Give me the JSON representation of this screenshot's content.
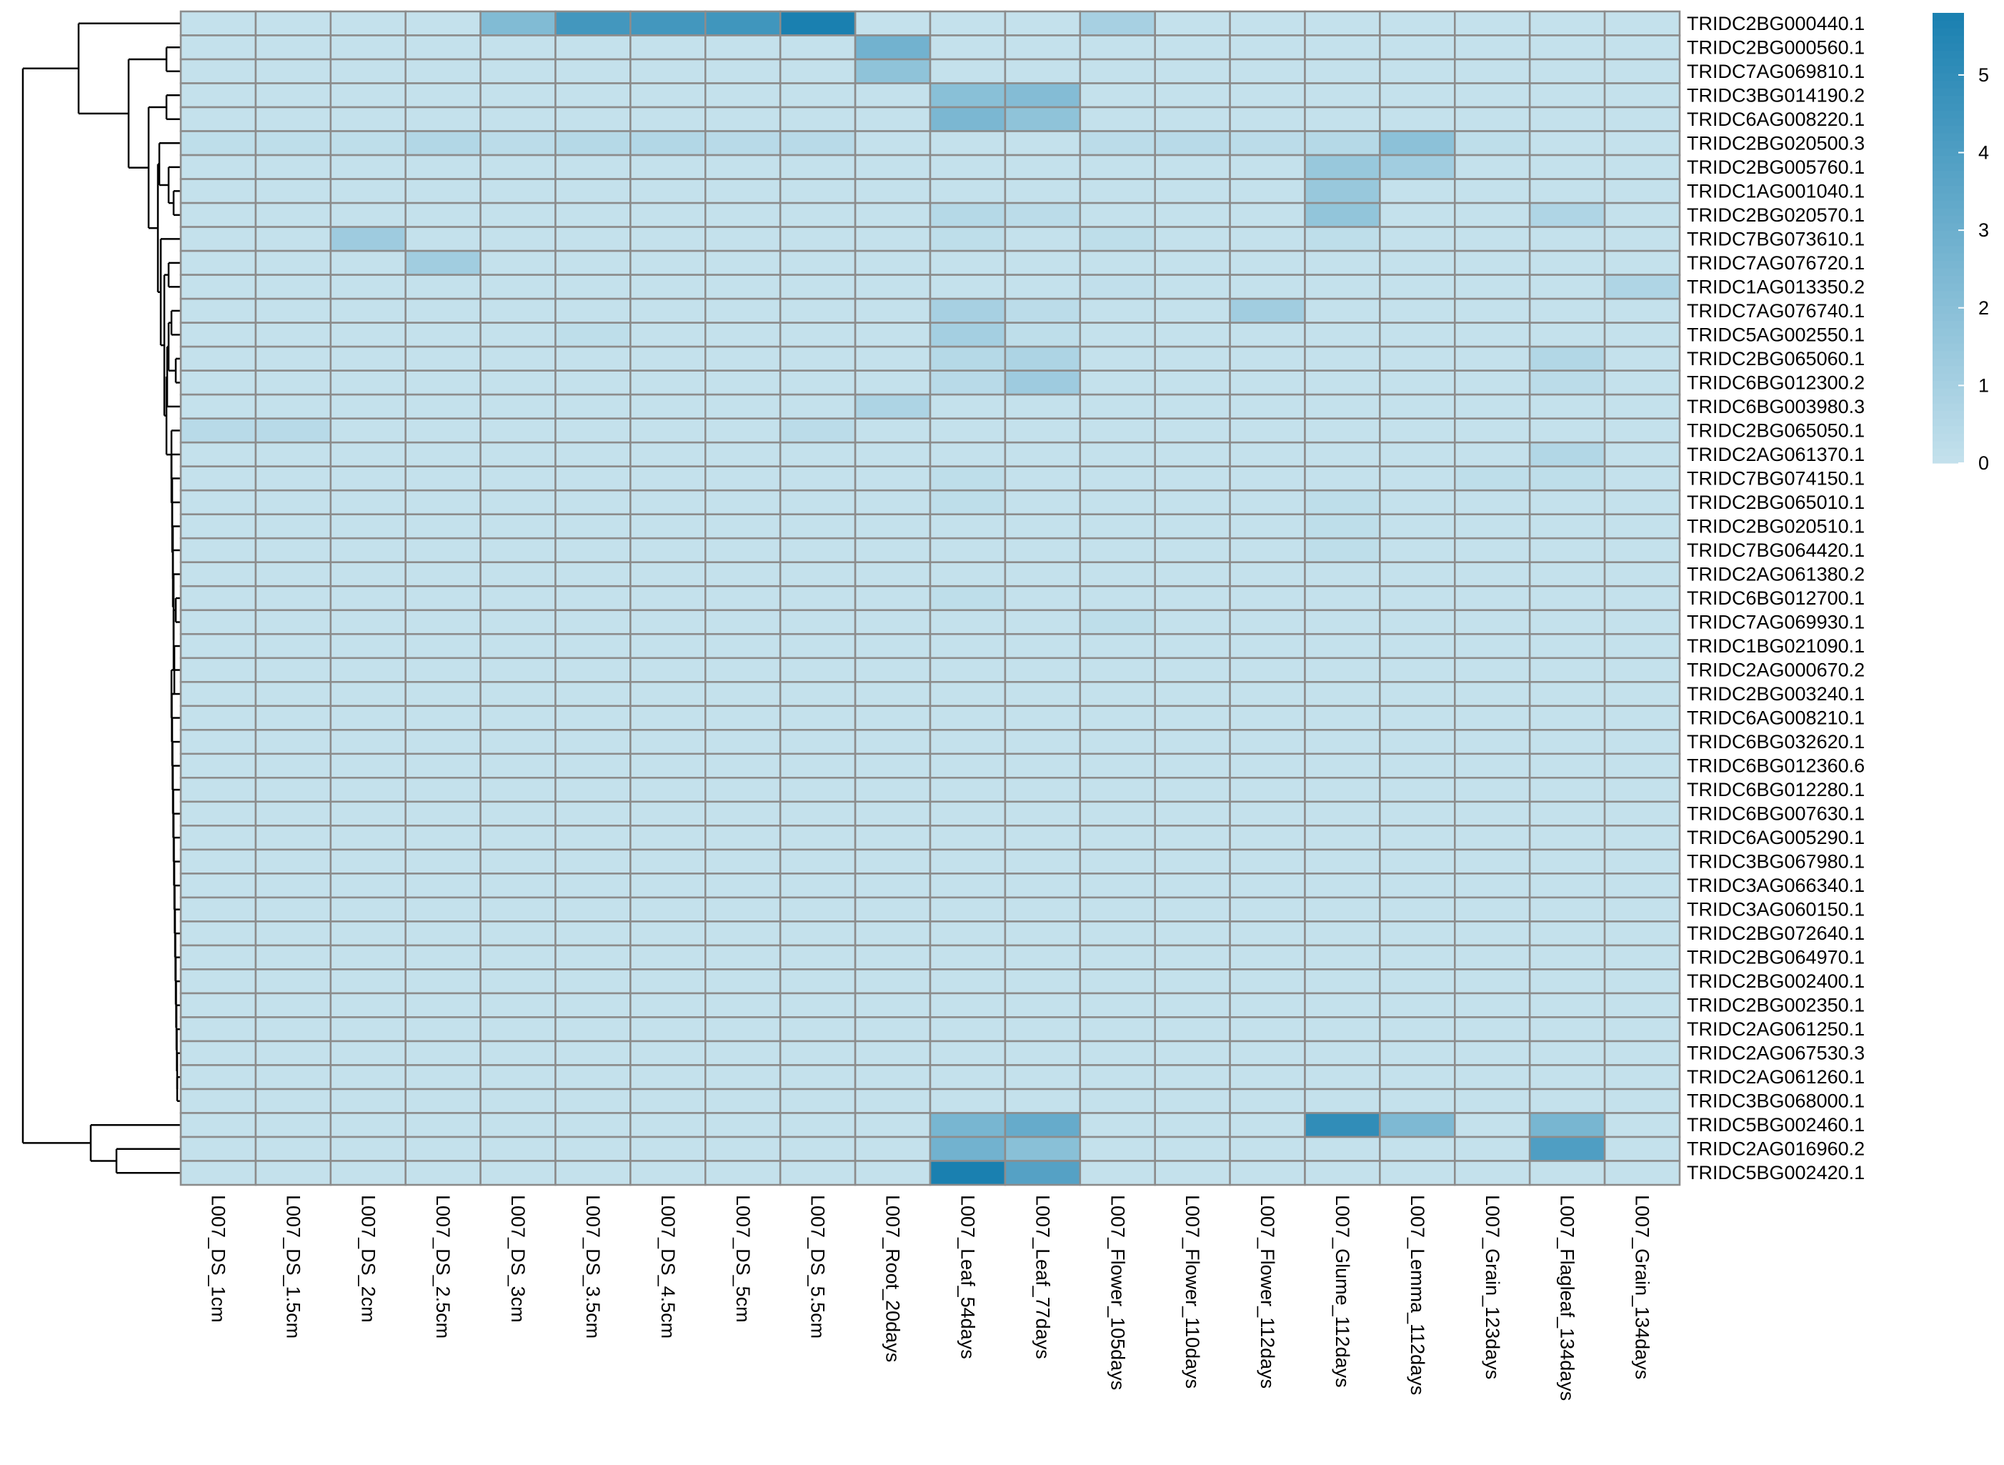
{
  "chart_data": {
    "type": "heatmap",
    "title": "",
    "xlabel": "",
    "ylabel": "",
    "columns": [
      "L007_DS_1cm",
      "L007_DS_1.5cm",
      "L007_DS_2cm",
      "L007_DS_2.5cm",
      "L007_DS_3cm",
      "L007_DS_3.5cm",
      "L007_DS_4.5cm",
      "L007_DS_5cm",
      "L007_DS_5.5cm",
      "L007_Root_20days",
      "L007_Leaf_54days",
      "L007_Leaf_77days",
      "L007_Flower_105days",
      "L007_Flower_110days",
      "L007_Flower_112days",
      "L007_Glume_112days",
      "L007_Lemma_112days",
      "L007_Grain_123days",
      "L007_Flagleaf_134days",
      "L007_Grain_134days"
    ],
    "rows": [
      "TRIDC2BG000440.1",
      "TRIDC2BG000560.1",
      "TRIDC7AG069810.1",
      "TRIDC3BG014190.2",
      "TRIDC6AG008220.1",
      "TRIDC2BG020500.3",
      "TRIDC2BG005760.1",
      "TRIDC1AG001040.1",
      "TRIDC2BG020570.1",
      "TRIDC7BG073610.1",
      "TRIDC7AG076720.1",
      "TRIDC1AG013350.2",
      "TRIDC7AG076740.1",
      "TRIDC5AG002550.1",
      "TRIDC2BG065060.1",
      "TRIDC6BG012300.2",
      "TRIDC6BG003980.3",
      "TRIDC2BG065050.1",
      "TRIDC2AG061370.1",
      "TRIDC7BG074150.1",
      "TRIDC2BG065010.1",
      "TRIDC2BG020510.1",
      "TRIDC7BG064420.1",
      "TRIDC2AG061380.2",
      "TRIDC6BG012700.1",
      "TRIDC7AG069930.1",
      "TRIDC1BG021090.1",
      "TRIDC2AG000670.2",
      "TRIDC2BG003240.1",
      "TRIDC6AG008210.1",
      "TRIDC6BG032620.1",
      "TRIDC6BG012360.6",
      "TRIDC6BG012280.1",
      "TRIDC6BG007630.1",
      "TRIDC6AG005290.1",
      "TRIDC3BG067980.1",
      "TRIDC3AG066340.1",
      "TRIDC3AG060150.1",
      "TRIDC2BG072640.1",
      "TRIDC2BG064970.1",
      "TRIDC2BG002400.1",
      "TRIDC2BG002350.1",
      "TRIDC2AG061250.1",
      "TRIDC2AG067530.3",
      "TRIDC2AG061260.1",
      "TRIDC3BG068000.1",
      "TRIDC5BG002460.1",
      "TRIDC2AG016960.2",
      "TRIDC5BG002420.1"
    ],
    "values": [
      [
        0,
        0,
        0,
        0,
        2.3,
        4.4,
        4.4,
        4.5,
        5.8,
        0,
        0,
        0,
        1,
        0,
        0,
        0,
        0,
        0,
        0,
        0
      ],
      [
        0,
        0,
        0,
        0,
        0,
        0,
        0,
        0,
        0,
        2.8,
        0,
        0,
        0,
        0,
        0,
        0,
        0,
        0,
        0,
        0
      ],
      [
        0,
        0,
        0,
        0,
        0,
        0,
        0,
        0,
        0,
        1.8,
        0,
        0,
        0,
        0,
        0,
        0,
        0,
        0,
        0,
        0
      ],
      [
        0,
        0,
        0,
        0,
        0,
        0,
        0,
        0,
        0,
        0,
        2,
        2.2,
        0,
        0,
        0,
        0,
        0,
        0,
        0,
        0
      ],
      [
        0,
        0,
        0,
        0,
        0,
        0,
        0,
        0,
        0,
        0,
        2.5,
        1.8,
        0,
        0,
        0,
        0,
        0,
        0,
        0,
        0
      ],
      [
        0.2,
        0.2,
        0.2,
        0.6,
        0.3,
        0.5,
        0.6,
        0.4,
        0.4,
        0,
        0,
        0,
        0.3,
        0.4,
        0.3,
        0.5,
        1.9,
        0.2,
        0,
        0
      ],
      [
        0,
        0,
        0,
        0,
        0,
        0,
        0,
        0,
        0,
        0,
        0,
        0,
        0,
        0,
        0,
        1.5,
        1.2,
        0,
        0,
        0
      ],
      [
        0,
        0,
        0,
        0,
        0,
        0,
        0,
        0,
        0,
        0,
        0,
        0,
        0,
        0,
        0,
        1.5,
        0,
        0,
        0,
        0
      ],
      [
        0,
        0,
        0,
        0,
        0,
        0,
        0,
        0,
        0,
        0,
        0.5,
        0.3,
        0,
        0,
        0,
        1.7,
        0,
        0,
        0.7,
        0
      ],
      [
        0,
        0,
        1.3,
        0,
        0,
        0,
        0,
        0,
        0,
        0,
        0.2,
        0,
        0.2,
        0,
        0,
        0.2,
        0,
        0,
        0,
        0
      ],
      [
        0,
        0,
        0,
        1.2,
        0,
        0,
        0,
        0,
        0,
        0,
        0,
        0,
        0,
        0,
        0,
        0,
        0,
        0,
        0,
        0
      ],
      [
        0,
        0,
        0,
        0,
        0,
        0,
        0,
        0,
        0,
        0,
        0,
        0,
        0.1,
        0,
        0,
        0,
        0,
        0,
        0,
        0.7
      ],
      [
        0,
        0,
        0,
        0,
        0,
        0,
        0,
        0,
        0,
        0,
        1,
        0.3,
        0,
        0,
        1.2,
        0,
        0,
        0,
        0,
        0
      ],
      [
        0,
        0,
        0,
        0,
        0,
        0.2,
        0,
        0,
        0,
        0,
        1.1,
        0.2,
        0,
        0,
        0,
        0,
        0,
        0,
        0,
        0
      ],
      [
        0,
        0,
        0,
        0,
        0,
        0,
        0,
        0,
        0,
        0,
        0.5,
        0.8,
        0,
        0,
        0,
        0,
        0,
        0,
        0.6,
        0
      ],
      [
        0,
        0,
        0,
        0,
        0,
        0,
        0,
        0,
        0,
        0,
        0.4,
        1.3,
        0,
        0,
        0,
        0,
        0,
        0,
        0.3,
        0
      ],
      [
        0,
        0,
        0,
        0,
        0,
        0,
        0,
        0,
        0,
        0.8,
        0,
        0,
        0,
        0,
        0,
        0,
        0,
        0,
        0,
        0
      ],
      [
        0.4,
        0.4,
        0,
        0,
        0,
        0,
        0,
        0,
        0.3,
        0,
        0,
        0,
        0,
        0,
        0,
        0,
        0,
        0,
        0,
        0
      ],
      [
        0,
        0,
        0,
        0,
        0,
        0,
        0,
        0,
        0,
        0,
        0,
        0,
        0,
        0,
        0,
        0,
        0,
        0,
        0.6,
        0
      ],
      [
        0,
        0,
        0,
        0,
        0,
        0,
        0,
        0,
        0,
        0,
        0.2,
        0,
        0,
        0,
        0,
        0,
        0,
        0.2,
        0.2,
        0
      ],
      [
        0,
        0,
        0,
        0,
        0,
        0,
        0,
        0,
        0,
        0,
        0.2,
        0,
        0,
        0,
        0,
        0.2,
        0,
        0,
        0,
        0
      ],
      [
        0,
        0,
        0,
        0,
        0,
        0,
        0,
        0,
        0,
        0,
        0,
        0,
        0,
        0,
        0,
        0.2,
        0,
        0,
        0,
        0
      ],
      [
        0,
        0,
        0,
        0,
        0,
        0,
        0,
        0,
        0,
        0,
        0,
        0,
        0,
        0,
        0,
        0.2,
        0,
        0,
        0,
        0
      ],
      [
        0,
        0,
        0,
        0,
        0,
        0,
        0,
        0,
        0,
        0,
        0,
        0,
        0,
        0,
        0,
        0,
        0,
        0,
        0,
        0
      ],
      [
        0,
        0,
        0,
        0,
        0,
        0,
        0,
        0,
        0,
        0,
        0.2,
        0,
        0,
        0,
        0,
        0,
        0,
        0,
        0,
        0
      ],
      [
        0,
        0,
        0,
        0,
        0,
        0,
        0,
        0,
        0,
        0,
        0,
        0,
        0.2,
        0,
        0,
        0,
        0,
        0,
        0,
        0
      ],
      [
        0,
        0,
        0,
        0,
        0,
        0,
        0,
        0,
        0,
        0,
        0,
        0,
        0,
        0,
        0,
        0,
        0,
        0,
        0,
        0
      ],
      [
        0,
        0,
        0,
        0,
        0,
        0,
        0,
        0,
        0,
        0,
        0,
        0,
        0,
        0,
        0,
        0,
        0,
        0,
        0,
        0
      ],
      [
        0,
        0,
        0,
        0,
        0,
        0,
        0,
        0,
        0,
        0,
        0,
        0,
        0,
        0,
        0,
        0,
        0,
        0,
        0,
        0
      ],
      [
        0,
        0,
        0,
        0,
        0,
        0,
        0,
        0,
        0,
        0,
        0,
        0,
        0,
        0,
        0,
        0,
        0,
        0,
        0,
        0
      ],
      [
        0,
        0,
        0,
        0,
        0,
        0,
        0,
        0,
        0,
        0,
        0,
        0,
        0,
        0,
        0,
        0,
        0,
        0,
        0,
        0
      ],
      [
        0,
        0,
        0,
        0,
        0,
        0,
        0,
        0,
        0,
        0,
        0,
        0,
        0,
        0,
        0,
        0,
        0,
        0,
        0,
        0
      ],
      [
        0,
        0,
        0,
        0,
        0,
        0,
        0,
        0,
        0,
        0,
        0,
        0,
        0,
        0,
        0,
        0,
        0,
        0,
        0,
        0
      ],
      [
        0,
        0,
        0,
        0,
        0,
        0,
        0,
        0,
        0,
        0,
        0,
        0,
        0,
        0,
        0,
        0,
        0,
        0,
        0,
        0
      ],
      [
        0,
        0,
        0,
        0,
        0,
        0,
        0,
        0,
        0,
        0,
        0,
        0,
        0,
        0,
        0,
        0,
        0,
        0,
        0,
        0
      ],
      [
        0,
        0,
        0,
        0,
        0,
        0,
        0,
        0,
        0,
        0,
        0,
        0,
        0,
        0,
        0,
        0,
        0,
        0,
        0,
        0
      ],
      [
        0,
        0,
        0,
        0,
        0,
        0,
        0,
        0,
        0,
        0,
        0,
        0,
        0,
        0,
        0,
        0,
        0,
        0,
        0,
        0
      ],
      [
        0,
        0,
        0,
        0,
        0,
        0,
        0,
        0,
        0,
        0,
        0,
        0,
        0,
        0,
        0,
        0,
        0,
        0,
        0,
        0
      ],
      [
        0,
        0,
        0,
        0,
        0,
        0,
        0,
        0,
        0,
        0,
        0,
        0,
        0,
        0,
        0,
        0,
        0,
        0,
        0,
        0
      ],
      [
        0,
        0,
        0,
        0,
        0,
        0,
        0,
        0,
        0,
        0,
        0,
        0,
        0,
        0,
        0,
        0,
        0,
        0,
        0,
        0
      ],
      [
        0,
        0,
        0,
        0,
        0,
        0,
        0,
        0,
        0,
        0,
        0,
        0,
        0,
        0,
        0,
        0,
        0,
        0,
        0,
        0
      ],
      [
        0,
        0,
        0,
        0,
        0,
        0,
        0,
        0,
        0,
        0,
        0,
        0,
        0,
        0,
        0,
        0,
        0,
        0,
        0,
        0
      ],
      [
        0,
        0,
        0,
        0,
        0,
        0,
        0,
        0,
        0,
        0,
        0,
        0,
        0,
        0,
        0,
        0,
        0,
        0,
        0,
        0
      ],
      [
        0,
        0,
        0,
        0,
        0,
        0,
        0,
        0,
        0,
        0,
        0,
        0,
        0,
        0,
        0,
        0,
        0,
        0,
        0,
        0
      ],
      [
        0,
        0,
        0,
        0,
        0,
        0,
        0,
        0,
        0,
        0,
        0,
        0,
        0,
        0,
        0,
        0,
        0,
        0,
        0,
        0
      ],
      [
        0,
        0,
        0,
        0,
        0,
        0,
        0,
        0,
        0,
        0,
        0,
        0,
        0,
        0,
        0,
        0,
        0,
        0,
        0,
        0
      ],
      [
        0,
        0,
        0,
        0,
        0,
        0,
        0,
        0,
        0,
        0,
        2.6,
        3.2,
        0,
        0,
        0,
        5,
        2.4,
        0,
        2.6,
        0
      ],
      [
        0,
        0,
        0,
        0,
        0,
        0,
        0,
        0,
        0,
        0,
        2.8,
        2,
        0,
        0,
        0,
        0,
        0,
        0,
        4,
        0
      ],
      [
        0,
        0,
        0,
        0,
        0,
        0,
        0,
        0,
        0,
        0,
        5.8,
        3.8,
        0,
        0,
        0,
        0,
        0,
        0,
        0,
        0
      ]
    ],
    "color_scale": {
      "min": 0,
      "max": 5.8,
      "low_color": "#c4e1ec",
      "high_color": "#1a80b0",
      "ticks": [
        0,
        1,
        2,
        3,
        4,
        5
      ]
    },
    "cell_border_color": "#8c8c8c",
    "legend_position": "top-right",
    "dendrogram": "rows"
  }
}
